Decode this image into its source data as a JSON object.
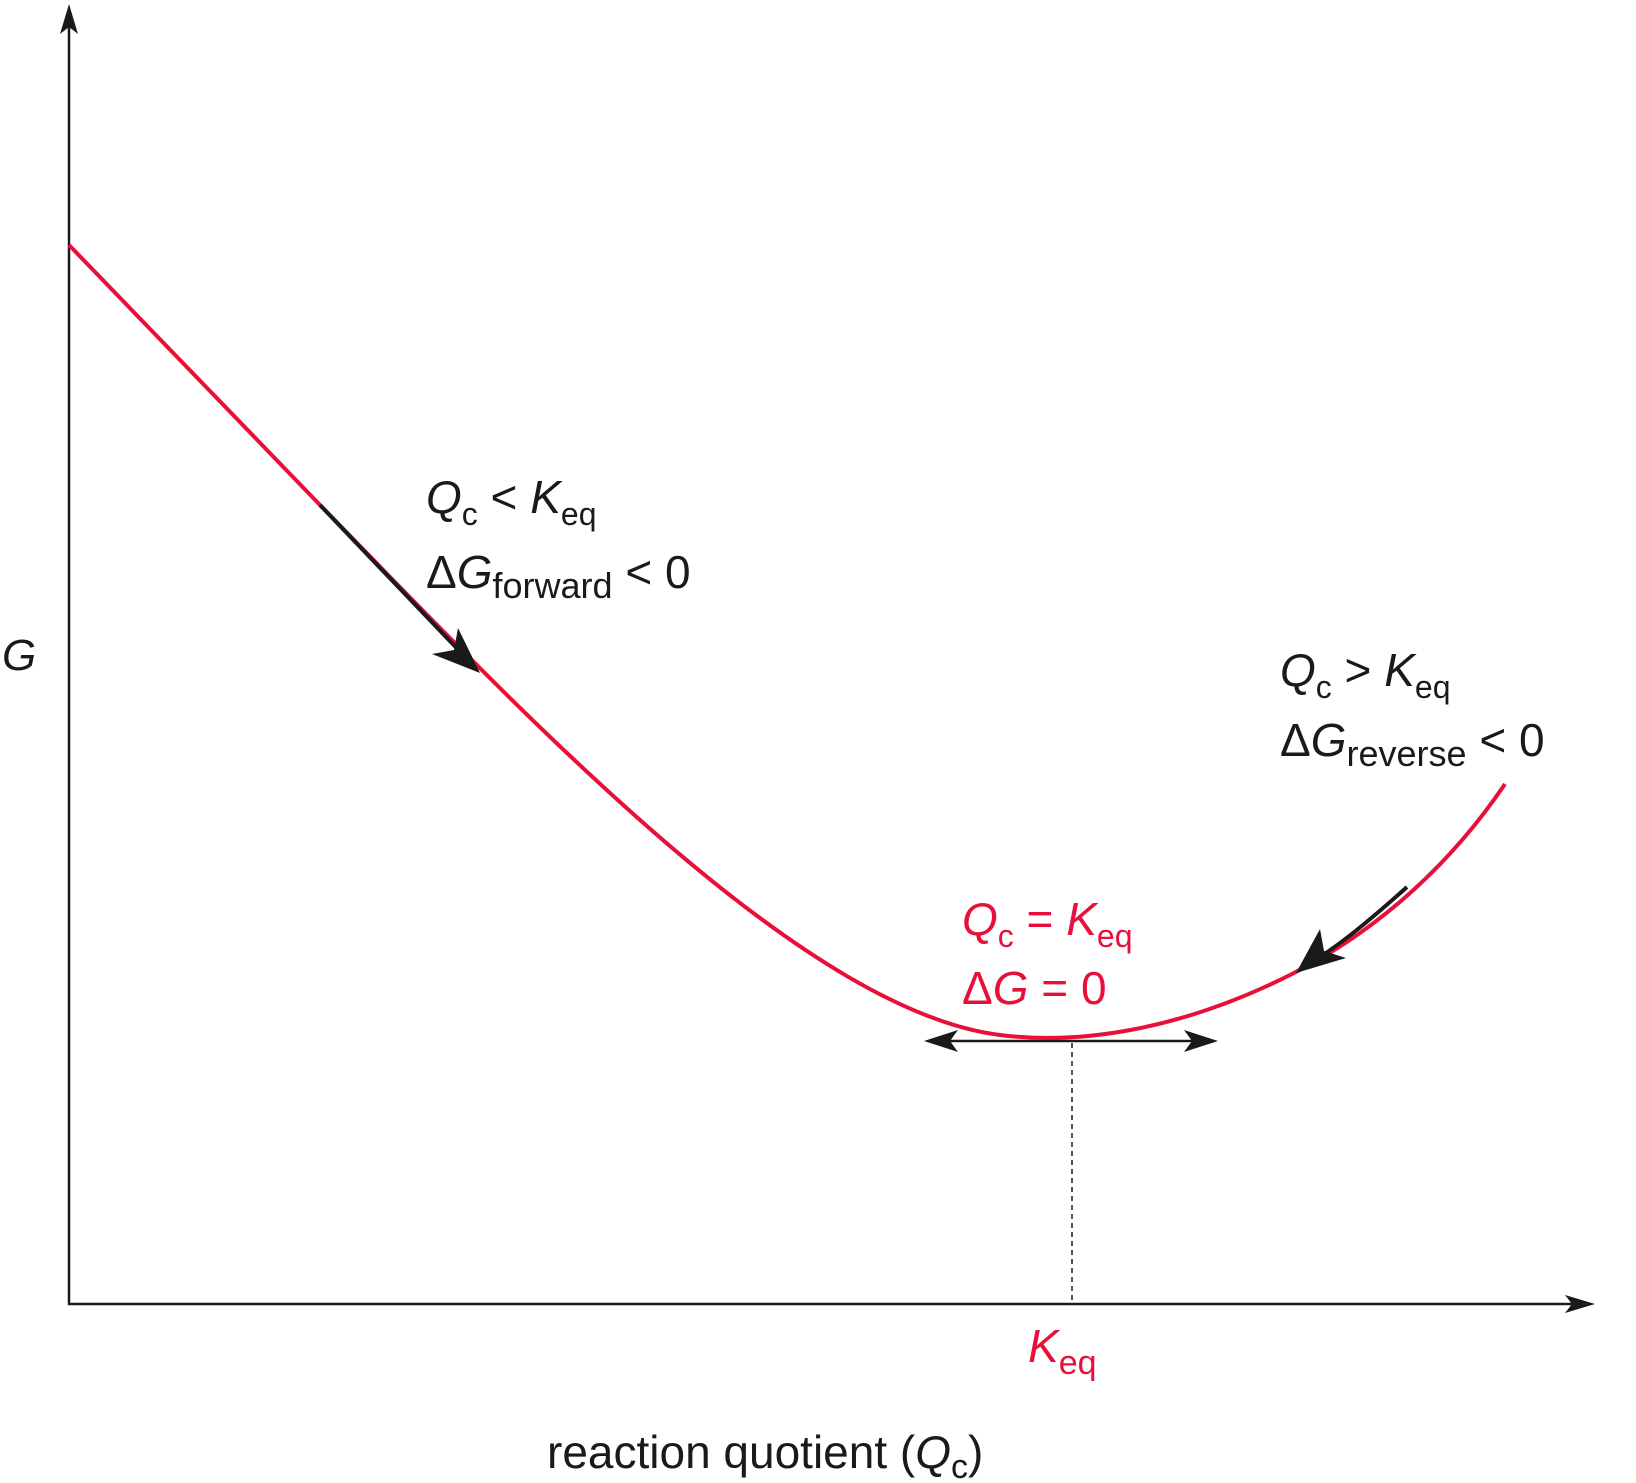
{
  "colors": {
    "curve": "#e8103a",
    "axis": "#1a1a1a",
    "arrow": "#1a1a1a"
  },
  "y_axis": {
    "label": "G"
  },
  "x_axis": {
    "label_text": "reaction quotient (",
    "label_var": "Q",
    "label_sub": "c",
    "label_close": ")",
    "tick_var": "K",
    "tick_sub": "eq"
  },
  "annotations": {
    "forward": {
      "line1_var": "Q",
      "line1_sub": "c",
      "line1_op": " < ",
      "line1_rhs_var": "K",
      "line1_rhs_sub": "eq",
      "line2_delta": "Δ",
      "line2_var": "G",
      "line2_sub": "forward",
      "line2_rest": " < 0"
    },
    "reverse": {
      "line1_var": "Q",
      "line1_sub": "c",
      "line1_op": " > ",
      "line1_rhs_var": "K",
      "line1_rhs_sub": "eq",
      "line2_delta": "Δ",
      "line2_var": "G",
      "line2_sub": "reverse",
      "line2_rest": " < 0"
    },
    "equilibrium": {
      "line1_var": "Q",
      "line1_sub": "c",
      "line1_op": " = ",
      "line1_rhs_var": "K",
      "line1_rhs_sub": "eq",
      "line2_delta": "Δ",
      "line2_var": "G",
      "line2_rest": " = 0"
    }
  }
}
